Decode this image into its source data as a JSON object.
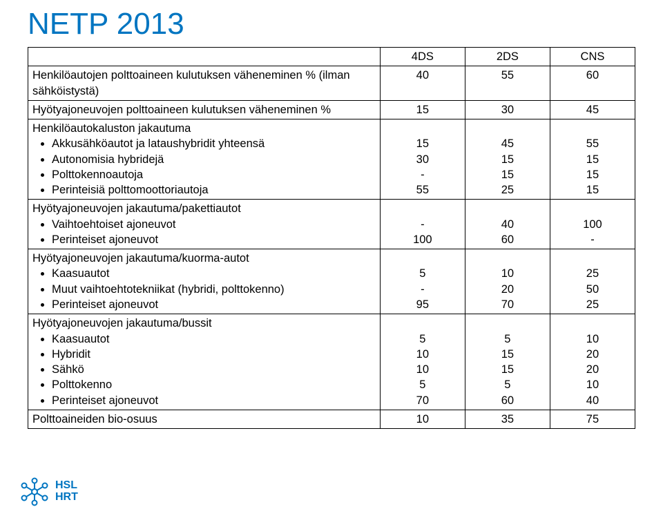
{
  "title": "NETP 2013",
  "title_color": "#0075c1",
  "title_fontsize": 44,
  "background_color": "#ffffff",
  "border_color": "#000000",
  "table": {
    "columns": [
      "",
      "4DS",
      "2DS",
      "CNS"
    ],
    "col_widths_pct": [
      58,
      14,
      14,
      14
    ],
    "rows": [
      {
        "label": "Henkilöautojen polttoaineen kulutuksen väheneminen % (ilman sähköistystä)",
        "type": "plain",
        "values": [
          "40",
          "55",
          "60"
        ]
      },
      {
        "label": "Hyötyajoneuvojen polttoaineen kulutuksen väheneminen %",
        "type": "plain",
        "values": [
          "15",
          "30",
          "45"
        ]
      },
      {
        "label": "Henkilöautokaluston jakautuma",
        "type": "group",
        "items": [
          "Akkusähköautot ja lataushybridit yhteensä",
          "Autonomisia hybridejä",
          "Polttokennoautoja",
          "Perinteisiä polttomoottoriautoja"
        ],
        "col1": [
          "15",
          "30",
          "-",
          "55"
        ],
        "col2": [
          "45",
          "15",
          "15",
          "25"
        ],
        "col3": [
          "55",
          "15",
          "15",
          "15"
        ]
      },
      {
        "label": "Hyötyajoneuvojen jakautuma/pakettiautot",
        "type": "group",
        "items": [
          "Vaihtoehtoiset ajoneuvot",
          "Perinteiset ajoneuvot"
        ],
        "col1": [
          "-",
          "100"
        ],
        "col2": [
          "40",
          "60"
        ],
        "col3": [
          "100",
          "-"
        ]
      },
      {
        "label": "Hyötyajoneuvojen jakautuma/kuorma-autot",
        "type": "group",
        "items": [
          "Kaasuautot",
          "Muut vaihtoehtotekniikat (hybridi, polttokenno)",
          "Perinteiset ajoneuvot"
        ],
        "col1": [
          "5",
          "-",
          "95"
        ],
        "col2": [
          "10",
          "20",
          "70"
        ],
        "col3": [
          "25",
          "50",
          "25"
        ]
      },
      {
        "label": "Hyötyajoneuvojen jakautuma/bussit",
        "type": "group",
        "items": [
          "Kaasuautot",
          "Hybridit",
          "Sähkö",
          "Polttokenno",
          "Perinteiset ajoneuvot"
        ],
        "col1": [
          "5",
          "10",
          "10",
          "5",
          "70"
        ],
        "col2": [
          "5",
          "15",
          "15",
          "5",
          "60"
        ],
        "col3": [
          "10",
          "20",
          "20",
          "10",
          "40"
        ]
      },
      {
        "label": "Polttoaineiden bio-osuus",
        "type": "plain",
        "values": [
          "10",
          "35",
          "75"
        ]
      }
    ]
  },
  "logo": {
    "line1": "HSL",
    "line2": "HRT",
    "color": "#0075c1"
  }
}
